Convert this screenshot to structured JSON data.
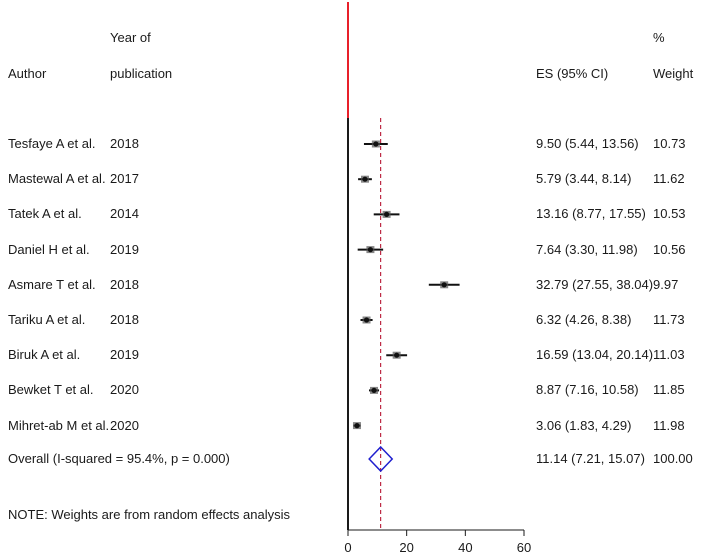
{
  "headers": {
    "author": "Author",
    "year_line1": "Year of",
    "year_line2": "publication",
    "es": "ES (95% CI)",
    "weight_line1": "%",
    "weight_line2": "Weight"
  },
  "note": "NOTE: Weights are from random effects analysis",
  "colors": {
    "null_line": "#e8202a",
    "pooled_line": "#b00020",
    "diamond": "#1f1fcf",
    "marker": "#111111"
  },
  "chart_data": {
    "type": "forest",
    "xlim": [
      0,
      60
    ],
    "x_ticks": [
      0,
      20,
      40,
      60
    ],
    "null_value": 0,
    "studies": [
      {
        "author": "Tesfaye A et al.",
        "year": "2018",
        "es": 9.5,
        "lo": 5.44,
        "hi": 13.56,
        "es_text": "9.50 (5.44, 13.56)",
        "weight": "10.73"
      },
      {
        "author": "Mastewal A et al.",
        "year": "2017",
        "es": 5.79,
        "lo": 3.44,
        "hi": 8.14,
        "es_text": "5.79 (3.44, 8.14)",
        "weight": "11.62"
      },
      {
        "author": "Tatek A et al.",
        "year": "2014",
        "es": 13.16,
        "lo": 8.77,
        "hi": 17.55,
        "es_text": "13.16 (8.77, 17.55)",
        "weight": "10.53"
      },
      {
        "author": "Daniel H et al.",
        "year": "2019",
        "es": 7.64,
        "lo": 3.3,
        "hi": 11.98,
        "es_text": "7.64 (3.30, 11.98)",
        "weight": "10.56"
      },
      {
        "author": "Asmare T et al.",
        "year": "2018",
        "es": 32.79,
        "lo": 27.55,
        "hi": 38.04,
        "es_text": "32.79 (27.55, 38.04)",
        "weight": "9.97"
      },
      {
        "author": "Tariku A et al.",
        "year": "2018",
        "es": 6.32,
        "lo": 4.26,
        "hi": 8.38,
        "es_text": "6.32 (4.26, 8.38)",
        "weight": "11.73"
      },
      {
        "author": "Biruk A et al.",
        "year": "2019",
        "es": 16.59,
        "lo": 13.04,
        "hi": 20.14,
        "es_text": "16.59 (13.04, 20.14)",
        "weight": "11.03"
      },
      {
        "author": "Bewket T et al.",
        "year": "2020",
        "es": 8.87,
        "lo": 7.16,
        "hi": 10.58,
        "es_text": "8.87 (7.16, 10.58)",
        "weight": "11.85"
      },
      {
        "author": "Mihret-ab M et al.",
        "year": "2020",
        "es": 3.06,
        "lo": 1.83,
        "hi": 4.29,
        "es_text": "3.06 (1.83, 4.29)",
        "weight": "11.98"
      }
    ],
    "overall": {
      "label": "Overall  (I-squared = 95.4%, p = 0.000)",
      "es": 11.14,
      "lo": 7.21,
      "hi": 15.07,
      "es_text": "11.14 (7.21, 15.07)",
      "weight": "100.00"
    }
  }
}
